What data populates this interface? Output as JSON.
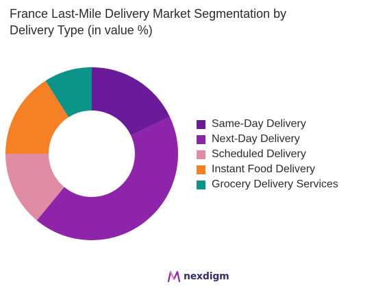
{
  "title_lines": [
    "France Last-Mile Delivery Market Segmentation by",
    "Delivery Type  (in value %)"
  ],
  "chart_data": {
    "type": "pie",
    "donut": true,
    "title": "France Last-Mile Delivery Market Segmentation by Delivery Type  (in value %)",
    "legend_position": "right",
    "categories": [
      "Same-Day Delivery",
      "Next-Day Delivery",
      "Scheduled Delivery",
      "Instant Food Delivery",
      "Grocery Delivery Services"
    ],
    "values": [
      18,
      43,
      14,
      16,
      9
    ],
    "colors": [
      "#6a1b9a",
      "#8e24aa",
      "#e08da4",
      "#f58025",
      "#0d9488"
    ]
  },
  "brand": {
    "name": "nexdigm",
    "icon": "nexdigm-logo-icon"
  }
}
